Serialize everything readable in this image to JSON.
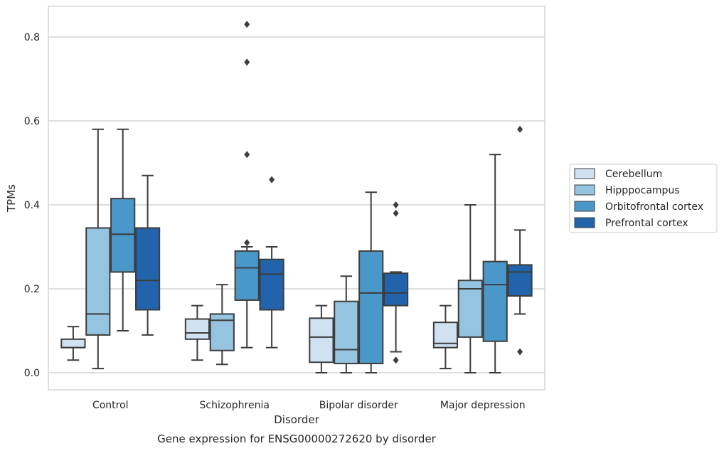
{
  "chart_data": {
    "type": "boxplot",
    "caption": "Gene expression for ENSG00000272620 by disorder",
    "xlabel": "Disorder",
    "ylabel": "TPMs",
    "ylim": [
      -0.04,
      0.875
    ],
    "yticks": [
      0.0,
      0.2,
      0.4,
      0.6,
      0.8
    ],
    "ytick_labels": [
      "0.0",
      "0.2",
      "0.4",
      "0.6",
      "0.8"
    ],
    "grid": "horizontal",
    "legend_position": "right",
    "categories": [
      "Control",
      "Schizophrenia",
      "Bipolar disorder",
      "Major depression"
    ],
    "series": [
      {
        "name": "Cerebellum",
        "color": "#d0e1f2",
        "boxes": [
          {
            "whislo": 0.03,
            "q1": 0.06,
            "med": 0.06,
            "q3": 0.08,
            "whishi": 0.11,
            "fliers": []
          },
          {
            "whislo": 0.03,
            "q1": 0.08,
            "med": 0.095,
            "q3": 0.128,
            "whishi": 0.16,
            "fliers": []
          },
          {
            "whislo": 0.0,
            "q1": 0.025,
            "med": 0.085,
            "q3": 0.13,
            "whishi": 0.16,
            "fliers": []
          },
          {
            "whislo": 0.01,
            "q1": 0.06,
            "med": 0.07,
            "q3": 0.12,
            "whishi": 0.16,
            "fliers": []
          }
        ]
      },
      {
        "name": "Hipppocampus",
        "color": "#94c4df",
        "boxes": [
          {
            "whislo": 0.01,
            "q1": 0.09,
            "med": 0.14,
            "q3": 0.345,
            "whishi": 0.58,
            "fliers": []
          },
          {
            "whislo": 0.02,
            "q1": 0.053,
            "med": 0.125,
            "q3": 0.14,
            "whishi": 0.21,
            "fliers": []
          },
          {
            "whislo": 0.0,
            "q1": 0.022,
            "med": 0.055,
            "q3": 0.17,
            "whishi": 0.23,
            "fliers": []
          },
          {
            "whislo": 0.0,
            "q1": 0.085,
            "med": 0.2,
            "q3": 0.22,
            "whishi": 0.4,
            "fliers": []
          }
        ]
      },
      {
        "name": "Orbitofrontal cortex",
        "color": "#4a98c9",
        "boxes": [
          {
            "whislo": 0.1,
            "q1": 0.24,
            "med": 0.33,
            "q3": 0.415,
            "whishi": 0.58,
            "fliers": []
          },
          {
            "whislo": 0.06,
            "q1": 0.173,
            "med": 0.25,
            "q3": 0.29,
            "whishi": 0.3,
            "fliers": [
              0.31,
              0.52,
              0.74,
              0.83
            ]
          },
          {
            "whislo": 0.0,
            "q1": 0.022,
            "med": 0.19,
            "q3": 0.29,
            "whishi": 0.43,
            "fliers": []
          },
          {
            "whislo": 0.0,
            "q1": 0.075,
            "med": 0.21,
            "q3": 0.265,
            "whishi": 0.52,
            "fliers": []
          }
        ]
      },
      {
        "name": "Prefrontal cortex",
        "color": "#2164ab",
        "boxes": [
          {
            "whislo": 0.09,
            "q1": 0.15,
            "med": 0.22,
            "q3": 0.345,
            "whishi": 0.47,
            "fliers": []
          },
          {
            "whislo": 0.06,
            "q1": 0.15,
            "med": 0.235,
            "q3": 0.27,
            "whishi": 0.3,
            "fliers": [
              0.46
            ]
          },
          {
            "whislo": 0.05,
            "q1": 0.16,
            "med": 0.19,
            "q3": 0.237,
            "whishi": 0.24,
            "fliers": [
              0.03,
              0.38,
              0.4
            ]
          },
          {
            "whislo": 0.14,
            "q1": 0.183,
            "med": 0.24,
            "q3": 0.257,
            "whishi": 0.34,
            "fliers": [
              0.05,
              0.58
            ]
          }
        ]
      }
    ]
  }
}
